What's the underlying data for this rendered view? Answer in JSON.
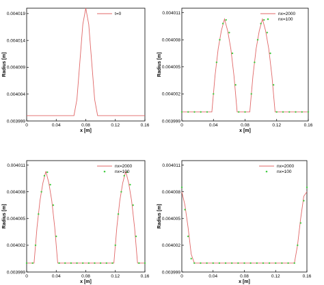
{
  "chart_data": [
    {
      "type": "line",
      "xlabel": "x [m]",
      "ylabel": "Radius [m]",
      "xlim": [
        0,
        0.16
      ],
      "ylim": [
        0.003999,
        0.00402
      ],
      "xticks": [
        "0",
        "0.04",
        "0.08",
        "0.12",
        "0.16"
      ],
      "yticks": [
        "0.003999",
        "0.004004",
        "0.004009",
        "0.004014",
        "0.004019"
      ],
      "grid": false,
      "legend_placement": "top-right",
      "series": [
        {
          "name": "t=0",
          "style": "line",
          "color": "#e06666",
          "x": [
            0,
            0.064,
            0.068,
            0.072,
            0.076,
            0.08,
            0.084,
            0.088,
            0.092,
            0.096,
            0.16
          ],
          "y": [
            0.004,
            0.004,
            0.004003,
            0.00401,
            0.004017,
            0.00402,
            0.004017,
            0.00401,
            0.004003,
            0.004,
            0.004
          ]
        }
      ]
    },
    {
      "type": "line",
      "xlabel": "x [m]",
      "ylabel": "Radius [m]",
      "xlim": [
        0,
        0.16
      ],
      "ylim": [
        0.003999,
        0.0040115
      ],
      "xticks": [
        "0",
        "0.04",
        "0.08",
        "0.12",
        "0.16"
      ],
      "yticks": [
        "0.003999",
        "0.004002",
        "0.004005",
        "0.004008",
        "0.004011"
      ],
      "grid": false,
      "legend_placement": "top-right",
      "series": [
        {
          "name": "nx=2000",
          "style": "line",
          "color": "#e06666",
          "x": [
            0,
            0.038,
            0.042,
            0.046,
            0.05,
            0.054,
            0.058,
            0.062,
            0.066,
            0.07,
            0.086,
            0.09,
            0.094,
            0.098,
            0.102,
            0.106,
            0.11,
            0.114,
            0.118,
            0.122,
            0.16
          ],
          "y": [
            0.004,
            0.004,
            0.004004,
            0.004007,
            0.004009,
            0.0040103,
            0.004009,
            0.004007,
            0.004004,
            0.004,
            0.004,
            0.004004,
            0.004007,
            0.004009,
            0.0040103,
            0.004009,
            0.004007,
            0.004004,
            0.004,
            0.004,
            0.004
          ]
        },
        {
          "name": "nx=100",
          "style": "markers",
          "color": "#44cc44",
          "x": [
            0.0,
            0.008,
            0.016,
            0.024,
            0.032,
            0.04,
            0.044,
            0.048,
            0.052,
            0.056,
            0.06,
            0.064,
            0.068,
            0.072,
            0.08,
            0.088,
            0.092,
            0.096,
            0.1,
            0.104,
            0.108,
            0.112,
            0.116,
            0.12,
            0.128,
            0.136,
            0.144,
            0.152,
            0.16
          ],
          "y": [
            0.004,
            0.004,
            0.004,
            0.004,
            0.004,
            0.004002,
            0.0040055,
            0.004008,
            0.0040098,
            0.0040102,
            0.0040088,
            0.0040065,
            0.004003,
            0.004,
            0.004,
            0.004002,
            0.0040055,
            0.004008,
            0.0040098,
            0.0040102,
            0.0040088,
            0.0040065,
            0.004003,
            0.004,
            0.004,
            0.004,
            0.004,
            0.004,
            0.004
          ]
        }
      ]
    },
    {
      "type": "line",
      "xlabel": "x [m]",
      "ylabel": "Radius [m]",
      "xlim": [
        0,
        0.16
      ],
      "ylim": [
        0.003999,
        0.0040115
      ],
      "xticks": [
        "0",
        "0.04",
        "0.08",
        "0.12",
        "0.16"
      ],
      "yticks": [
        "0.003999",
        "0.004002",
        "0.004005",
        "0.004008",
        "0.004011"
      ],
      "grid": false,
      "legend_placement": "top-right",
      "series": [
        {
          "name": "nx=2000",
          "style": "line",
          "color": "#e06666",
          "x": [
            0,
            0.01,
            0.014,
            0.018,
            0.022,
            0.026,
            0.03,
            0.034,
            0.038,
            0.042,
            0.118,
            0.122,
            0.126,
            0.13,
            0.134,
            0.138,
            0.142,
            0.146,
            0.15,
            0.16
          ],
          "y": [
            0.004,
            0.004,
            0.004004,
            0.004007,
            0.004009,
            0.0040103,
            0.004009,
            0.004007,
            0.004004,
            0.004,
            0.004,
            0.004004,
            0.004007,
            0.004009,
            0.0040103,
            0.004009,
            0.004007,
            0.004004,
            0.004,
            0.004
          ]
        },
        {
          "name": "nx=100",
          "style": "markers",
          "color": "#44cc44",
          "x": [
            0.0,
            0.008,
            0.012,
            0.016,
            0.02,
            0.024,
            0.028,
            0.032,
            0.036,
            0.04,
            0.044,
            0.052,
            0.06,
            0.068,
            0.076,
            0.084,
            0.092,
            0.1,
            0.108,
            0.116,
            0.12,
            0.124,
            0.128,
            0.132,
            0.136,
            0.14,
            0.144,
            0.148,
            0.152,
            0.16
          ],
          "y": [
            0.004,
            0.004,
            0.004002,
            0.0040055,
            0.004008,
            0.0040098,
            0.0040102,
            0.0040088,
            0.0040065,
            0.004003,
            0.004,
            0.004,
            0.004,
            0.004,
            0.004,
            0.004,
            0.004,
            0.004,
            0.004,
            0.004,
            0.004002,
            0.0040055,
            0.004008,
            0.0040098,
            0.0040102,
            0.0040088,
            0.0040065,
            0.004003,
            0.004,
            0.004
          ]
        }
      ]
    },
    {
      "type": "line",
      "xlabel": "x [m]",
      "ylabel": "Radius [m]",
      "xlim": [
        0,
        0.16
      ],
      "ylim": [
        0.003999,
        0.0040115
      ],
      "xticks": [
        "0",
        "0.04",
        "0.08",
        "0.12",
        "0.16"
      ],
      "yticks": [
        "0.003999",
        "0.004002",
        "0.004005",
        "0.004008",
        "0.004011"
      ],
      "grid": false,
      "legend_placement": "top-right",
      "series": [
        {
          "name": "nx=2000",
          "style": "line",
          "color": "#e06666",
          "x": [
            0,
            0.004,
            0.008,
            0.012,
            0.016,
            0.144,
            0.148,
            0.152,
            0.156,
            0.16
          ],
          "y": [
            0.004008,
            0.0040065,
            0.004004,
            0.004001,
            0.004,
            0.004,
            0.004002,
            0.004005,
            0.0040075,
            0.004008
          ]
        },
        {
          "name": "nx=100",
          "style": "markers",
          "color": "#44cc44",
          "x": [
            0.0,
            0.004,
            0.008,
            0.012,
            0.016,
            0.024,
            0.032,
            0.04,
            0.048,
            0.056,
            0.064,
            0.072,
            0.08,
            0.088,
            0.096,
            0.104,
            0.112,
            0.12,
            0.128,
            0.136,
            0.144,
            0.148,
            0.152,
            0.156,
            0.16
          ],
          "y": [
            0.0040085,
            0.004006,
            0.004003,
            0.0040005,
            0.004,
            0.004,
            0.004,
            0.004,
            0.004,
            0.004,
            0.004,
            0.004,
            0.004,
            0.004,
            0.004,
            0.004,
            0.004,
            0.004,
            0.004,
            0.004,
            0.004,
            0.004002,
            0.0040045,
            0.004007,
            0.0040085
          ]
        }
      ]
    }
  ]
}
